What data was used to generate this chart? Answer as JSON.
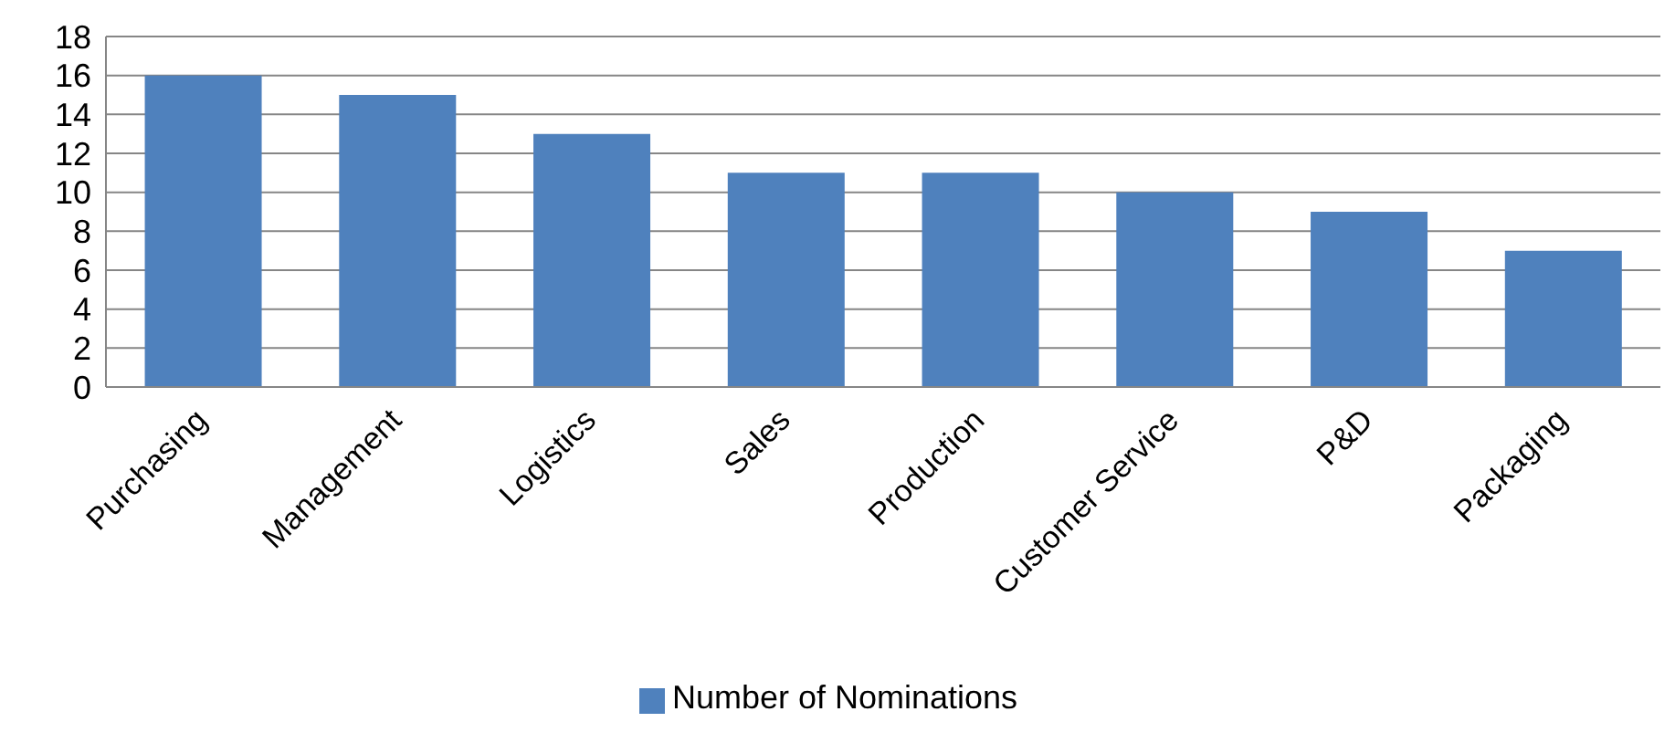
{
  "chart_data": {
    "type": "bar",
    "categories": [
      "Purchasing",
      "Management",
      "Logistics",
      "Sales",
      "Production",
      "Customer Service",
      "P&D",
      "Packaging"
    ],
    "series": [
      {
        "name": "Number of Nominations",
        "color": "#4f81bd",
        "values": [
          16,
          15,
          13,
          11,
          11,
          10,
          9,
          7
        ]
      }
    ],
    "ylim": [
      0,
      18
    ],
    "yticks": [
      0,
      2,
      4,
      6,
      8,
      10,
      12,
      14,
      16,
      18
    ],
    "grid": "y",
    "legend": "bottom"
  }
}
